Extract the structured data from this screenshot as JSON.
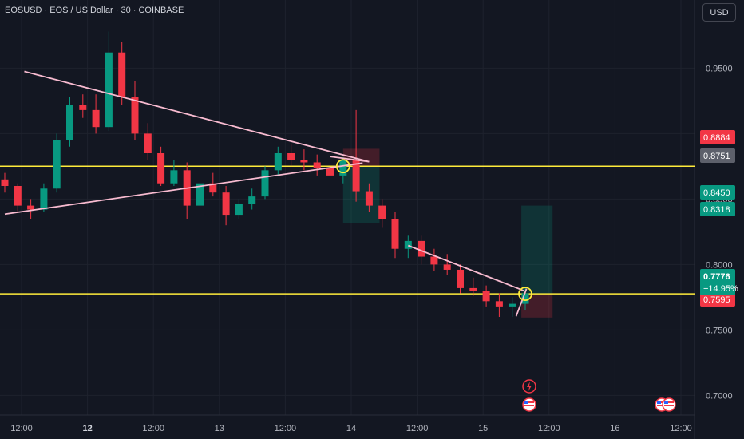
{
  "header": {
    "title": "EOSUSD · EOS / US Dollar · 30 · COINBASE",
    "currency_label": "USD"
  },
  "colors": {
    "background": "#131722",
    "up": "#089981",
    "down": "#f23645",
    "level_line": "#ffeb3b",
    "trendline": "#f8bbd0",
    "grid": "#1e222d"
  },
  "chart_data": {
    "type": "candlestick",
    "y_axis": {
      "ticks": [
        "0.9500",
        "0.9000",
        "0.8500",
        "0.8000",
        "0.7500",
        "0.7000"
      ],
      "min": 0.685,
      "max": 0.985
    },
    "x_axis": {
      "ticks": [
        {
          "label": "12:00",
          "bold": false
        },
        {
          "label": "12",
          "bold": true
        },
        {
          "label": "12:00",
          "bold": false
        },
        {
          "label": "13",
          "bold": false
        },
        {
          "label": "12:00",
          "bold": false
        },
        {
          "label": "14",
          "bold": false
        },
        {
          "label": "12:00",
          "bold": false
        },
        {
          "label": "15",
          "bold": false
        },
        {
          "label": "12:00",
          "bold": false
        },
        {
          "label": "16",
          "bold": false
        },
        {
          "label": "12:00",
          "bold": false
        }
      ]
    },
    "horizontal_levels": [
      0.8751,
      0.7776
    ],
    "price_tags": [
      {
        "text": "0.8884",
        "color": "#f23645"
      },
      {
        "text": "0.8751",
        "color": "#5d606b"
      },
      {
        "text": "0.8450",
        "color": "#089981"
      },
      {
        "text": "0.8318",
        "color": "#089981"
      },
      {
        "text": "0.7595",
        "color": "#f23645"
      },
      {
        "text": "0.7776",
        "color": "#089981"
      },
      {
        "text": "−14.95%",
        "color": "#089981"
      }
    ],
    "trendlines": [
      {
        "from": [
          1.5,
          0.9475
        ],
        "to": [
          28.0,
          0.8785
        ]
      },
      {
        "from": [
          0.0,
          0.8385
        ],
        "to": [
          27.5,
          0.8775
        ]
      },
      {
        "from": [
          28.0,
          0.8785
        ],
        "to": [
          25.0,
          0.8825
        ]
      },
      {
        "from": [
          31.0,
          0.8145
        ],
        "to": [
          39.9,
          0.78
        ]
      },
      {
        "from": [
          39.3,
          0.7605
        ],
        "to": [
          40.1,
          0.7815
        ]
      }
    ],
    "positions": [
      {
        "from": 26.0,
        "to": 28.8,
        "entry": 0.8751,
        "target": 0.8318,
        "stop": 0.8884
      },
      {
        "from": 39.7,
        "to": 42.1,
        "entry": 0.7776,
        "target": 0.845,
        "stop": 0.7595
      }
    ],
    "markers": [
      {
        "x": 26.0,
        "price": 0.8751
      },
      {
        "x": 40.0,
        "price": 0.7776
      }
    ],
    "candles": [
      [
        0.865,
        0.87,
        0.855,
        0.86
      ],
      [
        0.86,
        0.862,
        0.84,
        0.845
      ],
      [
        0.845,
        0.85,
        0.835,
        0.842
      ],
      [
        0.842,
        0.862,
        0.84,
        0.858
      ],
      [
        0.858,
        0.9,
        0.855,
        0.895
      ],
      [
        0.895,
        0.928,
        0.89,
        0.922
      ],
      [
        0.922,
        0.93,
        0.912,
        0.918
      ],
      [
        0.918,
        0.93,
        0.9,
        0.905
      ],
      [
        0.905,
        0.978,
        0.902,
        0.962
      ],
      [
        0.962,
        0.97,
        0.922,
        0.928
      ],
      [
        0.928,
        0.94,
        0.895,
        0.9
      ],
      [
        0.9,
        0.908,
        0.88,
        0.885
      ],
      [
        0.885,
        0.89,
        0.86,
        0.862
      ],
      [
        0.862,
        0.88,
        0.86,
        0.872
      ],
      [
        0.872,
        0.878,
        0.835,
        0.845
      ],
      [
        0.845,
        0.87,
        0.842,
        0.862
      ],
      [
        0.862,
        0.87,
        0.852,
        0.855
      ],
      [
        0.855,
        0.86,
        0.83,
        0.838
      ],
      [
        0.838,
        0.85,
        0.835,
        0.846
      ],
      [
        0.846,
        0.858,
        0.842,
        0.852
      ],
      [
        0.852,
        0.875,
        0.85,
        0.872
      ],
      [
        0.872,
        0.89,
        0.868,
        0.885
      ],
      [
        0.885,
        0.892,
        0.875,
        0.88
      ],
      [
        0.88,
        0.888,
        0.872,
        0.878
      ],
      [
        0.878,
        0.884,
        0.868,
        0.874
      ],
      [
        0.874,
        0.88,
        0.862,
        0.868
      ],
      [
        0.868,
        0.882,
        0.862,
        0.88
      ],
      [
        0.88,
        0.918,
        0.848,
        0.856
      ],
      [
        0.856,
        0.862,
        0.84,
        0.845
      ],
      [
        0.845,
        0.85,
        0.828,
        0.835
      ],
      [
        0.835,
        0.84,
        0.805,
        0.812
      ],
      [
        0.812,
        0.822,
        0.805,
        0.818
      ],
      [
        0.818,
        0.822,
        0.8,
        0.806
      ],
      [
        0.806,
        0.812,
        0.795,
        0.8
      ],
      [
        0.8,
        0.808,
        0.792,
        0.796
      ],
      [
        0.796,
        0.8,
        0.778,
        0.782
      ],
      [
        0.782,
        0.79,
        0.776,
        0.78
      ],
      [
        0.78,
        0.784,
        0.768,
        0.772
      ],
      [
        0.772,
        0.778,
        0.76,
        0.768
      ],
      [
        0.768,
        0.775,
        0.76,
        0.77
      ],
      [
        0.77,
        0.782,
        0.765,
        0.778
      ]
    ]
  }
}
